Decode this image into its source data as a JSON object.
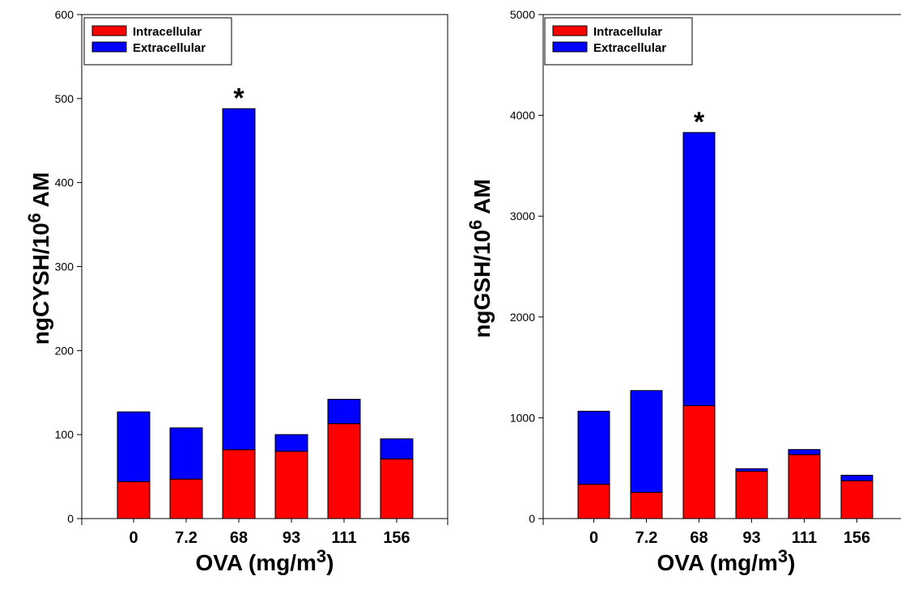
{
  "chart_data": [
    {
      "type": "bar",
      "stacked": true,
      "categories": [
        "0",
        "7.2",
        "68",
        "93",
        "111",
        "156"
      ],
      "series": [
        {
          "name": "Intracellular",
          "color": "#ff0000",
          "values": [
            44,
            47,
            82,
            80,
            113,
            71
          ]
        },
        {
          "name": "Extracellular",
          "color": "#0000ff",
          "values": [
            83,
            61,
            406,
            20,
            29,
            24
          ]
        }
      ],
      "xlabel": {
        "text": "OVA (mg/m",
        "sup": "3",
        "suffix": ")"
      },
      "ylabel": {
        "text": "ngCYSH/10",
        "sup": "6",
        "suffix": " AM"
      },
      "ylim": [
        0,
        600
      ],
      "yticks": [
        0,
        100,
        200,
        300,
        400,
        500,
        600
      ],
      "ytick_labels": [
        "0",
        "100",
        "200",
        "300",
        "400",
        "500",
        "600"
      ],
      "annotations": [
        {
          "category": "68",
          "text": "*"
        }
      ],
      "legend_position": "top-left",
      "grid": false
    },
    {
      "type": "bar",
      "stacked": true,
      "categories": [
        "0",
        "7.2",
        "68",
        "93",
        "111",
        "156"
      ],
      "series": [
        {
          "name": "Intracellular",
          "color": "#ff0000",
          "values": [
            340,
            260,
            1120,
            470,
            635,
            375
          ]
        },
        {
          "name": "Extracellular",
          "color": "#0000ff",
          "values": [
            725,
            1010,
            2710,
            25,
            50,
            55
          ]
        }
      ],
      "xlabel": {
        "text": "OVA (mg/m",
        "sup": "3",
        "suffix": ")"
      },
      "ylabel": {
        "text": "ngGSH/10",
        "sup": "6",
        "suffix": " AM"
      },
      "ylim": [
        0,
        5000
      ],
      "yticks": [
        0,
        1000,
        2000,
        3000,
        4000,
        5000
      ],
      "ytick_labels": [
        "0",
        "1000",
        "2000",
        "3000",
        "4000",
        "5000"
      ],
      "annotations": [
        {
          "category": "68",
          "text": "*"
        }
      ],
      "legend_position": "top-left",
      "grid": false
    }
  ]
}
